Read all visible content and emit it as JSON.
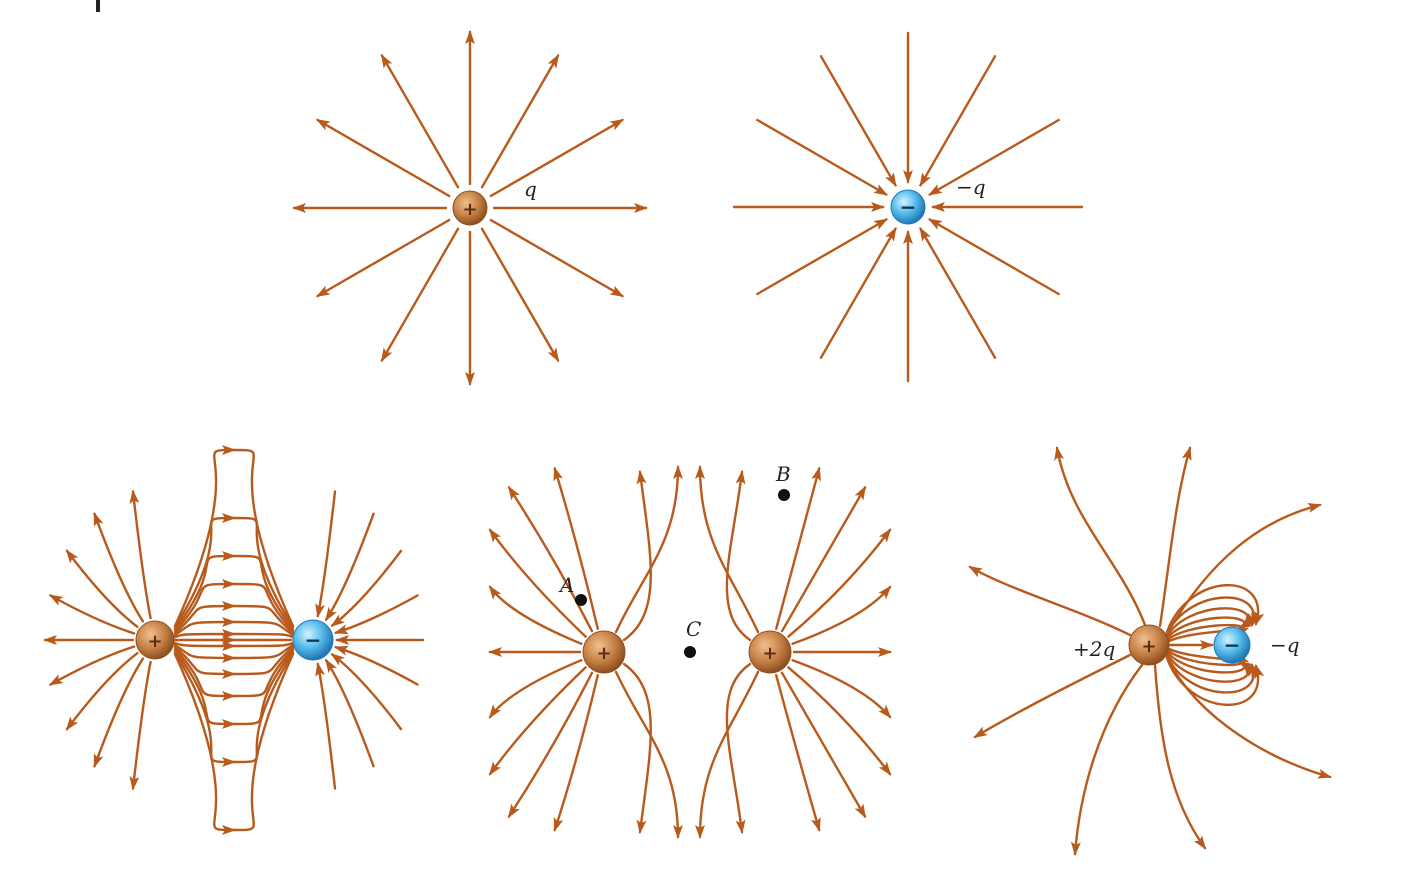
{
  "colors": {
    "field_line": "#b85a1c",
    "positive_fill": "#c98449",
    "positive_dark": "#9a5a28",
    "negative_fill": "#4fb3e4",
    "negative_dark": "#2a85c0",
    "point": "#111111",
    "text": "#222222"
  },
  "diagrams": {
    "single_positive": {
      "label": "q",
      "sign": "+"
    },
    "single_negative": {
      "label": "−q",
      "sign": "−"
    },
    "dipole": {
      "plus_sign": "+",
      "minus_sign": "−"
    },
    "two_positive": {
      "left_sign": "+",
      "right_sign": "+",
      "points": {
        "A": "A",
        "B": "B",
        "C": "C"
      }
    },
    "unequal_pair": {
      "plus_label": "+2q",
      "minus_label": "−q",
      "plus_sign": "+",
      "minus_sign": "−"
    }
  }
}
